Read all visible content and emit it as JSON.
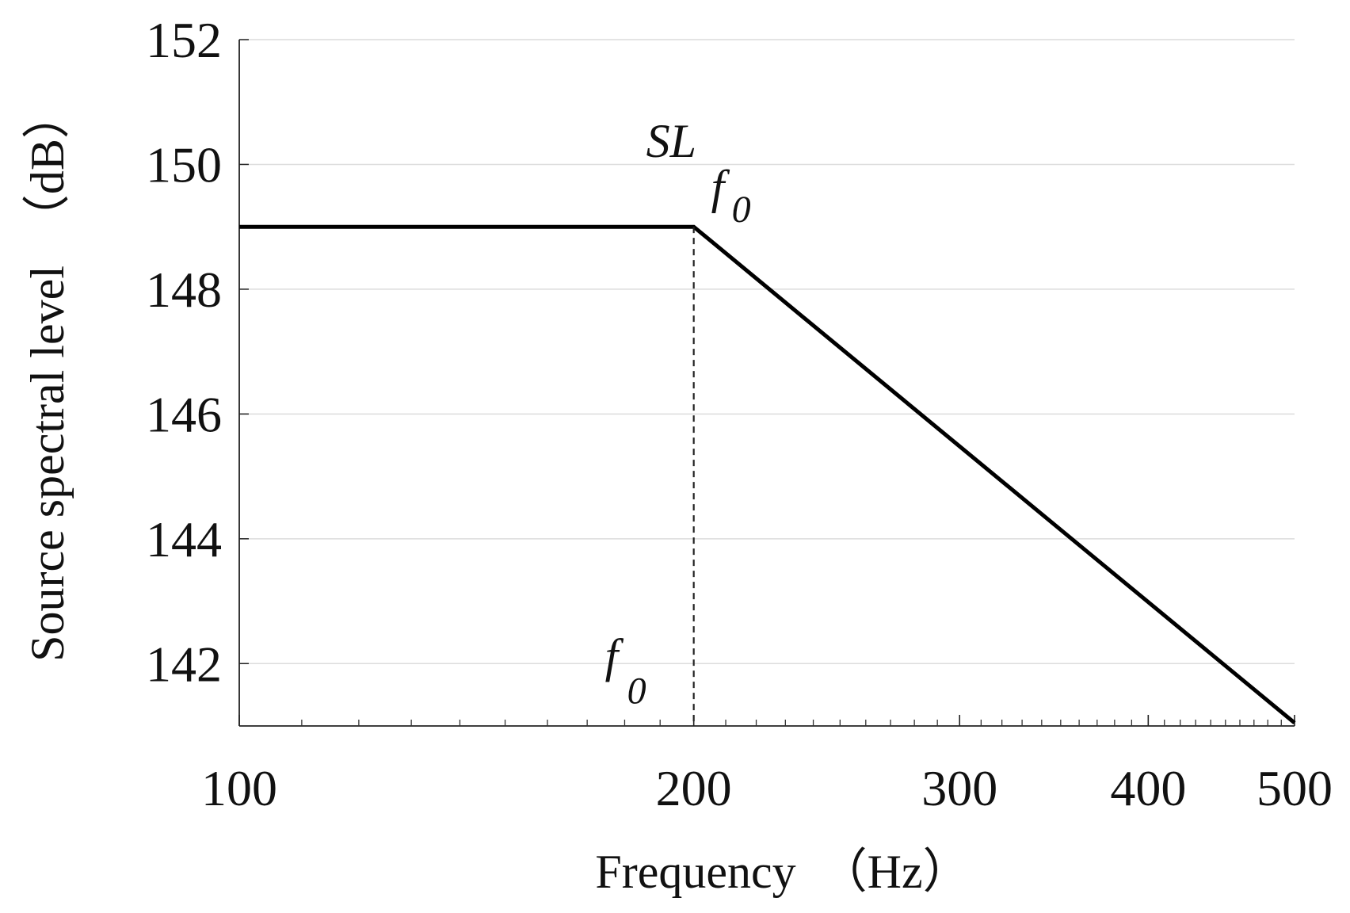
{
  "chart_data": {
    "type": "line",
    "title": "",
    "xlabel": "Frequency　（Hz）",
    "ylabel": "Source spectral level　（dB）",
    "x_scale": "log",
    "xlim": [
      100,
      500
    ],
    "ylim": [
      141,
      152
    ],
    "x_ticks": [
      100,
      200,
      300,
      400,
      500
    ],
    "x_tick_labels": [
      "100",
      "200",
      "300",
      "400",
      "500"
    ],
    "y_ticks": [
      142,
      144,
      146,
      148,
      150,
      152
    ],
    "y_tick_labels": [
      "142",
      "144",
      "146",
      "148",
      "150",
      "152"
    ],
    "grid": "horizontal",
    "series": [
      {
        "x": [
          100,
          200,
          500
        ],
        "y": [
          149,
          149,
          141.05
        ],
        "color": "#000000",
        "style": "solid"
      }
    ],
    "annotations": {
      "corner_frequency": 200,
      "corner_level": 149,
      "sl_label_main": "SL",
      "sl_label_sub": "f",
      "sl_label_subsub": "0",
      "f0_label_main": "f",
      "f0_label_sub": "0",
      "vertical_line_style": "dashed"
    }
  }
}
